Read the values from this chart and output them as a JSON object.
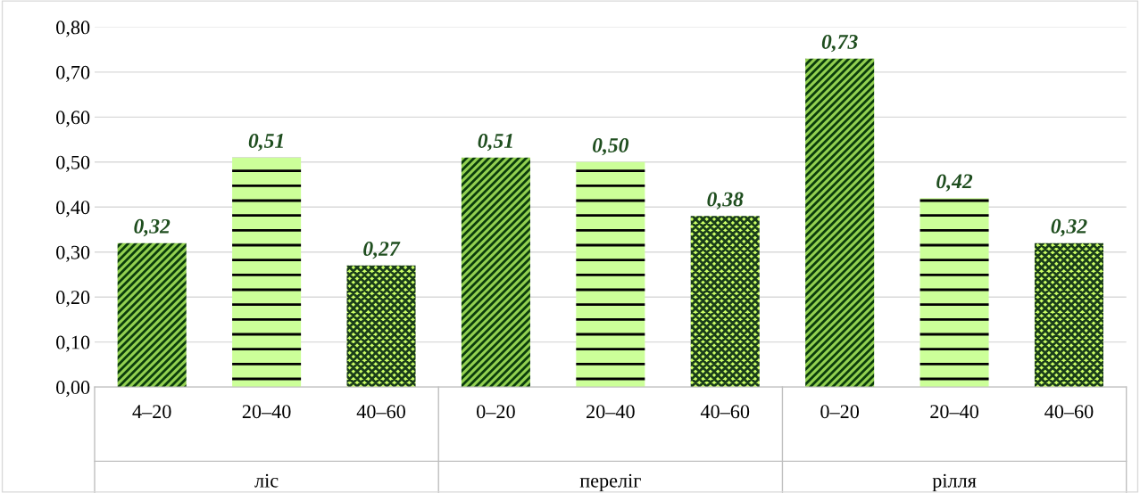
{
  "chart_data": {
    "type": "bar",
    "categories": [
      "4–20",
      "20–40",
      "40–60",
      "0–20",
      "20–40",
      "40–60",
      "0–20",
      "20–40",
      "40–60"
    ],
    "values": [
      0.32,
      0.51,
      0.27,
      0.51,
      0.5,
      0.38,
      0.73,
      0.42,
      0.32
    ],
    "colors": [
      "#92d050",
      "#ccff99",
      "#ccff66",
      "#92d050",
      "#ccff99",
      "#ccff66",
      "#92d050",
      "#ccff99",
      "#ccff66"
    ],
    "value_labels": [
      "0,32",
      "0,51",
      "0,27",
      "0,51",
      "0,50",
      "0,38",
      "0,73",
      "0,42",
      "0,32"
    ],
    "annotations": [
      "ліс",
      "переліг",
      "рілля"
    ],
    "ylim": [
      0,
      0.8
    ],
    "yticks": [
      {
        "value": 0,
        "label": "0,00"
      },
      {
        "value": 0.1,
        "label": "0,10"
      },
      {
        "value": 0.2,
        "label": "0,20"
      },
      {
        "value": 0.3,
        "label": "0,30"
      },
      {
        "value": 0.4,
        "label": "0,40"
      },
      {
        "value": 0.5,
        "label": "0,50"
      },
      {
        "value": 0.6,
        "label": "0,60"
      },
      {
        "value": 0.7,
        "label": "0,70"
      },
      {
        "value": 0.8,
        "label": "0,80"
      }
    ],
    "grid": "y",
    "legend": false
  }
}
